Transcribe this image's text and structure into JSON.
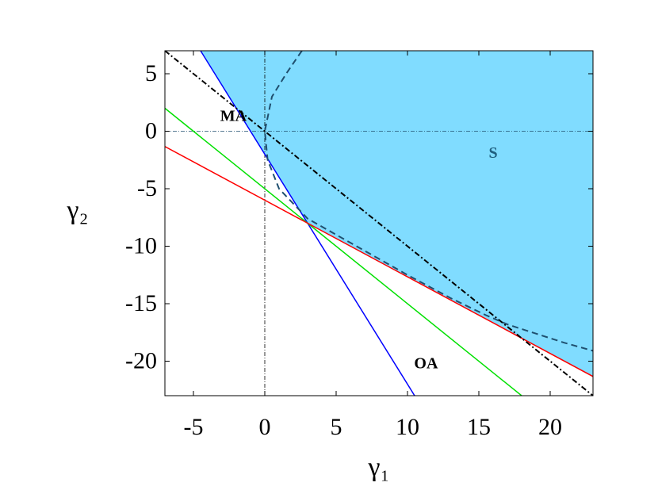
{
  "chart_data": {
    "type": "line",
    "xlabel": "γ₁",
    "ylabel": "γ₂",
    "xlim": [
      -7,
      23
    ],
    "ylim": [
      -23,
      7
    ],
    "xticks": [
      -5,
      0,
      5,
      10,
      15,
      20
    ],
    "yticks": [
      5,
      0,
      -5,
      -10,
      -15,
      -20
    ],
    "region": {
      "color": "#80dcff",
      "x": [
        -4.5,
        3,
        23,
        23
      ],
      "values": [
        7,
        -8,
        -21.33,
        7
      ]
    },
    "reference_lines": {
      "x": [
        0
      ],
      "y": [
        0
      ]
    },
    "series": [
      {
        "color": "#0000ff",
        "style": "solid",
        "x": [
          -4.5,
          10.5
        ],
        "values": [
          7,
          -23
        ]
      },
      {
        "color": "#00e000",
        "style": "solid",
        "x": [
          -7,
          18
        ],
        "values": [
          2,
          -23
        ]
      },
      {
        "color": "#ff0000",
        "style": "solid",
        "x": [
          -7,
          23
        ],
        "values": [
          -1.33,
          -21.33
        ]
      },
      {
        "color": "#000000",
        "style": "dashdot",
        "x": [
          -7,
          23
        ],
        "values": [
          7,
          -23
        ]
      },
      {
        "color": "#1f4f6f",
        "style": "dashed",
        "x": [
          2.6,
          1.5,
          0.5,
          0,
          0.2,
          1,
          3,
          6,
          10,
          13,
          15.5,
          17,
          19,
          21,
          23
        ],
        "values": [
          7,
          5,
          3,
          0,
          -2.5,
          -5,
          -7.6,
          -9.7,
          -12.5,
          -14.5,
          -16,
          -16.8,
          -17.6,
          -18.4,
          -19.1
        ]
      }
    ],
    "annotations": [
      {
        "text": "MA",
        "x": -2.2,
        "y": 1.2
      },
      {
        "text": "S",
        "x": 16,
        "y": -2
      },
      {
        "text": "OA",
        "x": 11.3,
        "y": -20.3
      }
    ]
  }
}
